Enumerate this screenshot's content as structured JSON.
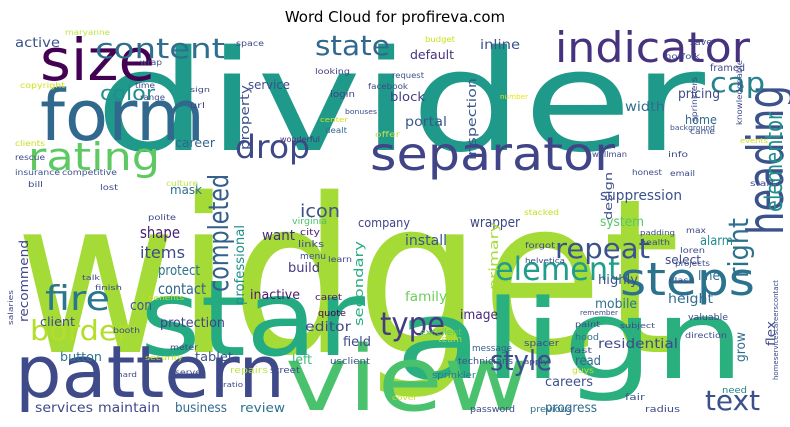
{
  "chart_data": {
    "type": "wordcloud",
    "title": "Word Cloud for profireva.com",
    "words": [
      {
        "text": "widget",
        "color": "#a5db36"
      },
      {
        "text": "divider",
        "color": "#1f9a8a"
      },
      {
        "text": "star",
        "color": "#25ab82"
      },
      {
        "text": "align",
        "color": "#2ab07f"
      },
      {
        "text": "view",
        "color": "#4ac16d"
      },
      {
        "text": "pattern",
        "color": "#3e4a89"
      },
      {
        "text": "form",
        "color": "#31688e"
      },
      {
        "text": "size",
        "color": "#440154"
      },
      {
        "text": "indicator",
        "color": "#46327e"
      },
      {
        "text": "separator",
        "color": "#414487"
      },
      {
        "text": "heading",
        "color": "#3b528b"
      },
      {
        "text": "steps",
        "color": "#2c728e"
      },
      {
        "text": "rating",
        "color": "#5ec962"
      },
      {
        "text": "content",
        "color": "#2e6e8e"
      },
      {
        "text": "state",
        "color": "#31688e"
      },
      {
        "text": "color",
        "color": "#228d8d"
      },
      {
        "text": "drop",
        "color": "#3e4989"
      },
      {
        "text": "cap",
        "color": "#26828e"
      },
      {
        "text": "elementor",
        "color": "#21918c"
      },
      {
        "text": "right",
        "color": "#2d708e"
      },
      {
        "text": "completed",
        "color": "#355f8d"
      },
      {
        "text": "element",
        "color": "#1f9e89"
      },
      {
        "text": "repeat",
        "color": "#3b528b"
      },
      {
        "text": "type",
        "color": "#443a83"
      },
      {
        "text": "style",
        "color": "#3d4e8a"
      },
      {
        "text": "text",
        "color": "#3c508b"
      },
      {
        "text": "fire",
        "color": "#2a768e"
      },
      {
        "text": "border",
        "color": "#b5de2b"
      },
      {
        "text": "icon",
        "color": "#3b528b"
      },
      {
        "text": "shape",
        "color": "#481f70"
      },
      {
        "text": "items",
        "color": "#3e4a89"
      },
      {
        "text": "protect",
        "color": "#2c728e"
      },
      {
        "text": "contact",
        "color": "#32658e"
      },
      {
        "text": "con",
        "color": "#38588c"
      },
      {
        "text": "protection",
        "color": "#414487"
      },
      {
        "text": "button",
        "color": "#2a788e"
      },
      {
        "text": "services",
        "color": "#3e4a89"
      },
      {
        "text": "maintain",
        "color": "#3e4a89"
      },
      {
        "text": "business",
        "color": "#31688e"
      },
      {
        "text": "review",
        "color": "#2c728e"
      },
      {
        "text": "tablet",
        "color": "#3b528b"
      },
      {
        "text": "left",
        "color": "#38b977"
      },
      {
        "text": "inactive",
        "color": "#481b6d"
      },
      {
        "text": "editor",
        "color": "#3e4989"
      },
      {
        "text": "build",
        "color": "#443983"
      },
      {
        "text": "want",
        "color": "#472d7b"
      },
      {
        "text": "company",
        "color": "#414487"
      },
      {
        "text": "install",
        "color": "#39568c"
      },
      {
        "text": "wrapper",
        "color": "#3f4788"
      },
      {
        "text": "system",
        "color": "#56c667"
      },
      {
        "text": "suppression",
        "color": "#3b528b"
      },
      {
        "text": "alarm",
        "color": "#238a8d"
      },
      {
        "text": "select",
        "color": "#3e4989"
      },
      {
        "text": "height",
        "color": "#2f6c8e"
      },
      {
        "text": "line",
        "color": "#2c718e"
      },
      {
        "text": "mobile",
        "color": "#2c728e"
      },
      {
        "text": "highly",
        "color": "#3b528b"
      },
      {
        "text": "family",
        "color": "#6ccd5a"
      },
      {
        "text": "image",
        "color": "#482878"
      },
      {
        "text": "residential",
        "color": "#3e4a89"
      },
      {
        "text": "grow",
        "color": "#2e6f8e"
      },
      {
        "text": "flex",
        "color": "#3e4a89"
      },
      {
        "text": "careers",
        "color": "#3b528b"
      },
      {
        "text": "progress",
        "color": "#31688e"
      },
      {
        "text": "read",
        "color": "#31688e"
      },
      {
        "text": "field",
        "color": "#3e4a89"
      },
      {
        "text": "block",
        "color": "#433e85"
      },
      {
        "text": "inline",
        "color": "#3b528b"
      },
      {
        "text": "default",
        "color": "#46317e"
      },
      {
        "text": "service",
        "color": "#3d4d8a"
      },
      {
        "text": "login",
        "color": "#423f85"
      },
      {
        "text": "portal",
        "color": "#38598c"
      },
      {
        "text": "pricing",
        "color": "#3e4c8a"
      },
      {
        "text": "home",
        "color": "#31688e"
      },
      {
        "text": "width",
        "color": "#2d708e"
      },
      {
        "text": "primary",
        "color": "#a8db34"
      },
      {
        "text": "secondary",
        "color": "#26ad81"
      },
      {
        "text": "inspection",
        "color": "#37588c"
      },
      {
        "text": "property",
        "color": "#3b528b"
      },
      {
        "text": "professional",
        "color": "#218e8d"
      },
      {
        "text": "mask",
        "color": "#2e6e8e"
      },
      {
        "text": "career",
        "color": "#32658e"
      },
      {
        "text": "recommend",
        "color": "#3f4889"
      },
      {
        "text": "client",
        "color": "#3e4a89"
      },
      {
        "text": "active",
        "color": "#3b528b"
      },
      {
        "text": "framed",
        "color": "#3e4a89"
      },
      {
        "text": "design",
        "color": "#3d4d8a"
      },
      {
        "text": "city",
        "color": "#482475"
      },
      {
        "text": "links",
        "color": "#3e4a89"
      },
      {
        "text": "menu",
        "color": "#3a548c"
      },
      {
        "text": "virginia",
        "color": "#4ac16d"
      },
      {
        "text": "quote",
        "color": "#440154"
      },
      {
        "text": "caret",
        "color": "#481a6c"
      },
      {
        "text": "repairs",
        "color": "#bde64c"
      },
      {
        "text": "street",
        "color": "#3d4e8a"
      },
      {
        "text": "usclient",
        "color": "#3b528b"
      },
      {
        "text": "message",
        "color": "#33638d"
      },
      {
        "text": "technicians",
        "color": "#3b528b"
      },
      {
        "text": "team",
        "color": "#b0dd2f"
      },
      {
        "text": "excellent",
        "color": "#5ec962"
      },
      {
        "text": "sprinkler",
        "color": "#2a788e"
      },
      {
        "text": "password",
        "color": "#3e4a89"
      },
      {
        "text": "previous",
        "color": "#2e6e8e"
      },
      {
        "text": "spacer",
        "color": "#3e4a89"
      },
      {
        "text": "fast",
        "color": "#404688"
      },
      {
        "text": "hood",
        "color": "#2d718e"
      },
      {
        "text": "fair",
        "color": "#3b528b"
      },
      {
        "text": "radius",
        "color": "#3e4a89"
      },
      {
        "text": "need",
        "color": "#25858e"
      },
      {
        "text": "valuable",
        "color": "#3f4889"
      },
      {
        "text": "direction",
        "color": "#3e4a89"
      },
      {
        "text": "save",
        "color": "#3e4a89"
      },
      {
        "text": "norfolk",
        "color": "#3b528b"
      },
      {
        "text": "facebook",
        "color": "#3e4a89"
      },
      {
        "text": "request",
        "color": "#3b528b"
      },
      {
        "text": "number",
        "color": "#e8e419"
      },
      {
        "text": "space",
        "color": "#3e4a89"
      },
      {
        "text": "looking",
        "color": "#423f85"
      },
      {
        "text": "offer",
        "color": "#c3df4f"
      },
      {
        "text": "dealt",
        "color": "#31688e"
      },
      {
        "text": "wonderful",
        "color": "#46317e"
      },
      {
        "text": "center",
        "color": "#d5e21a"
      },
      {
        "text": "came",
        "color": "#3b528b"
      },
      {
        "text": "info",
        "color": "#3f4788"
      },
      {
        "text": "email",
        "color": "#3f4788"
      },
      {
        "text": "wellman",
        "color": "#3e4a89"
      },
      {
        "text": "honest",
        "color": "#3e4a89"
      },
      {
        "text": "background",
        "color": "#3b528b"
      },
      {
        "text": "events",
        "color": "#c9e020"
      },
      {
        "text": "start",
        "color": "#3e4a89"
      },
      {
        "text": "copyright",
        "color": "#d0e11c"
      },
      {
        "text": "maryanne",
        "color": "#bde64c"
      },
      {
        "text": "insurance",
        "color": "#3b528b"
      },
      {
        "text": "competitive",
        "color": "#3b528b"
      },
      {
        "text": "bill",
        "color": "#3e4a89"
      },
      {
        "text": "lost",
        "color": "#3e4a89"
      },
      {
        "text": "rescue",
        "color": "#3e4a89"
      },
      {
        "text": "clients",
        "color": "#c9e020"
      },
      {
        "text": "culture",
        "color": "#bde64c"
      },
      {
        "text": "polite",
        "color": "#3e4a89"
      },
      {
        "text": "benefits",
        "color": "#c2df23"
      },
      {
        "text": "finish",
        "color": "#3e4a89"
      },
      {
        "text": "talk",
        "color": "#3e4a89"
      },
      {
        "text": "booth",
        "color": "#3e4a89"
      },
      {
        "text": "meter",
        "color": "#3e4a89"
      },
      {
        "text": "serve",
        "color": "#3e4a89"
      },
      {
        "text": "hard",
        "color": "#3e4a89"
      },
      {
        "text": "security",
        "color": "#c2df23"
      },
      {
        "text": "ratio",
        "color": "#3e4a89"
      },
      {
        "text": "cover",
        "color": "#c9e020"
      },
      {
        "text": "apply",
        "color": "#3e4a89"
      },
      {
        "text": "guys",
        "color": "#c2df23"
      },
      {
        "text": "paint",
        "color": "#3e4a89"
      },
      {
        "text": "remember",
        "color": "#3e4a89"
      },
      {
        "text": "learn",
        "color": "#3e4a89"
      },
      {
        "text": "forgot",
        "color": "#3e4a89"
      },
      {
        "text": "stacked",
        "color": "#c2df23"
      },
      {
        "text": "helvetica",
        "color": "#3e4a89"
      },
      {
        "text": "loren",
        "color": "#3e4a89"
      },
      {
        "text": "max",
        "color": "#3e4a89"
      },
      {
        "text": "projects",
        "color": "#3e4a89"
      },
      {
        "text": "class",
        "color": "#3e4a89"
      },
      {
        "text": "health",
        "color": "#3e4a89"
      },
      {
        "text": "padding",
        "color": "#3e4a89"
      },
      {
        "text": "subject",
        "color": "#3e4a89"
      },
      {
        "text": "knowledgeable",
        "color": "#3e4a89"
      },
      {
        "text": "sprinklers",
        "color": "#3e4a89"
      },
      {
        "text": "homeservicescareerscontact",
        "color": "#3e4a89"
      },
      {
        "text": "salaries",
        "color": "#3e4a89"
      },
      {
        "text": "budget",
        "color": "#c8e020"
      },
      {
        "text": "bonuses",
        "color": "#3e4a89"
      },
      {
        "text": "time",
        "color": "#3e4a89"
      },
      {
        "text": "range",
        "color": "#3e4a89"
      },
      {
        "text": "wrap",
        "color": "#3e4a89"
      },
      {
        "text": "sign",
        "color": "#3e4a89"
      },
      {
        "text": "url",
        "color": "#3e4a89"
      }
    ]
  }
}
